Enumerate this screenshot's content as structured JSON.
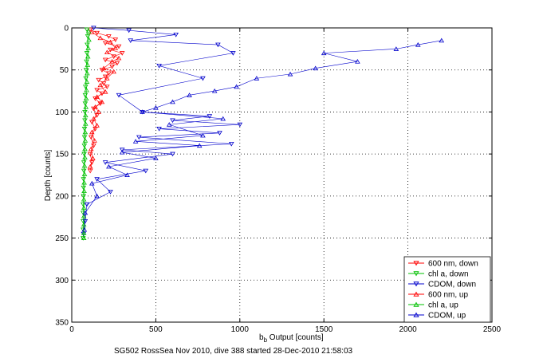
{
  "chart_data": {
    "type": "scatter",
    "title": "",
    "xlabel_main": "b",
    "xlabel_sub": "b",
    "xlabel_rest": " Output [counts]",
    "ylabel": "Depth [counts]",
    "caption": "SG502 RossSea Nov 2010, dive 388 started 28-Dec-2010 21:58:03",
    "xlim": [
      0,
      2500
    ],
    "ylim": [
      0,
      350
    ],
    "y_reversed": true,
    "grid": true,
    "legend_position": "bottom-right",
    "x_ticks": [
      "0",
      "500",
      "1000",
      "1500",
      "2000",
      "2500"
    ],
    "y_ticks": [
      "0",
      "50",
      "100",
      "150",
      "200",
      "250",
      "300",
      "350"
    ],
    "series": [
      {
        "name": "600 nm, down",
        "color": "#ff0000",
        "marker": "triangle-down",
        "points": [
          [
            110,
            2
          ],
          [
            150,
            6
          ],
          [
            220,
            10
          ],
          [
            260,
            14
          ],
          [
            200,
            18
          ],
          [
            280,
            22
          ],
          [
            230,
            26
          ],
          [
            300,
            30
          ],
          [
            250,
            34
          ],
          [
            200,
            38
          ],
          [
            270,
            42
          ],
          [
            240,
            46
          ],
          [
            180,
            50
          ],
          [
            220,
            54
          ],
          [
            200,
            58
          ],
          [
            160,
            62
          ],
          [
            190,
            66
          ],
          [
            210,
            70
          ],
          [
            150,
            74
          ],
          [
            180,
            78
          ],
          [
            140,
            84
          ],
          [
            170,
            90
          ],
          [
            130,
            96
          ],
          [
            150,
            104
          ],
          [
            120,
            112
          ],
          [
            140,
            120
          ],
          [
            115,
            130
          ],
          [
            130,
            140
          ],
          [
            110,
            150
          ],
          [
            120,
            160
          ],
          [
            110,
            170
          ]
        ]
      },
      {
        "name": "chl a, down",
        "color": "#00c000",
        "marker": "triangle-down",
        "points": [
          [
            90,
            2
          ],
          [
            95,
            10
          ],
          [
            92,
            20
          ],
          [
            90,
            30
          ],
          [
            88,
            40
          ],
          [
            86,
            50
          ],
          [
            84,
            60
          ],
          [
            82,
            70
          ],
          [
            80,
            80
          ],
          [
            80,
            90
          ],
          [
            78,
            100
          ],
          [
            78,
            110
          ],
          [
            76,
            120
          ],
          [
            76,
            130
          ],
          [
            75,
            140
          ],
          [
            74,
            150
          ],
          [
            72,
            160
          ],
          [
            72,
            170
          ],
          [
            70,
            180
          ],
          [
            70,
            190
          ],
          [
            70,
            200
          ],
          [
            68,
            210
          ],
          [
            68,
            220
          ],
          [
            68,
            230
          ],
          [
            68,
            240
          ],
          [
            68,
            250
          ]
        ]
      },
      {
        "name": "CDOM, down",
        "color": "#0000cc",
        "marker": "triangle-down",
        "points": [
          [
            130,
            0
          ],
          [
            340,
            3
          ],
          [
            620,
            8
          ],
          [
            350,
            15
          ],
          [
            870,
            20
          ],
          [
            960,
            30
          ],
          [
            520,
            45
          ],
          [
            780,
            60
          ],
          [
            280,
            80
          ],
          [
            420,
            100
          ],
          [
            820,
            105
          ],
          [
            600,
            110
          ],
          [
            1000,
            115
          ],
          [
            520,
            120
          ],
          [
            880,
            125
          ],
          [
            400,
            130
          ],
          [
            950,
            138
          ],
          [
            300,
            145
          ],
          [
            600,
            150
          ],
          [
            200,
            160
          ],
          [
            440,
            170
          ],
          [
            150,
            180
          ],
          [
            230,
            195
          ],
          [
            90,
            210
          ],
          [
            80,
            230
          ],
          [
            70,
            245
          ]
        ]
      },
      {
        "name": "600 nm, up",
        "color": "#ff0000",
        "marker": "triangle-up",
        "points": [
          [
            120,
            5
          ],
          [
            170,
            12
          ],
          [
            230,
            17
          ],
          [
            260,
            24
          ],
          [
            210,
            29
          ],
          [
            280,
            36
          ],
          [
            240,
            40
          ],
          [
            190,
            48
          ],
          [
            250,
            52
          ],
          [
            210,
            60
          ],
          [
            170,
            68
          ],
          [
            200,
            76
          ],
          [
            150,
            82
          ],
          [
            180,
            88
          ],
          [
            140,
            94
          ],
          [
            160,
            100
          ],
          [
            130,
            108
          ],
          [
            150,
            116
          ],
          [
            120,
            124
          ],
          [
            135,
            134
          ],
          [
            115,
            144
          ],
          [
            125,
            155
          ],
          [
            110,
            165
          ]
        ]
      },
      {
        "name": "chl a, up",
        "color": "#00c000",
        "marker": "triangle-up",
        "points": [
          [
            100,
            4
          ],
          [
            102,
            14
          ],
          [
            98,
            24
          ],
          [
            96,
            34
          ],
          [
            94,
            44
          ],
          [
            92,
            54
          ],
          [
            90,
            64
          ],
          [
            88,
            74
          ],
          [
            86,
            84
          ],
          [
            84,
            94
          ],
          [
            82,
            104
          ],
          [
            82,
            114
          ],
          [
            80,
            124
          ],
          [
            80,
            134
          ],
          [
            78,
            144
          ],
          [
            78,
            154
          ],
          [
            76,
            164
          ],
          [
            76,
            174
          ],
          [
            74,
            184
          ],
          [
            74,
            194
          ],
          [
            72,
            204
          ],
          [
            72,
            214
          ],
          [
            72,
            224
          ],
          [
            72,
            234
          ],
          [
            72,
            244
          ],
          [
            72,
            250
          ]
        ]
      },
      {
        "name": "CDOM, up",
        "color": "#0000cc",
        "marker": "triangle-up",
        "points": [
          [
            2200,
            15
          ],
          [
            2060,
            20
          ],
          [
            1930,
            25
          ],
          [
            1500,
            30
          ],
          [
            1700,
            40
          ],
          [
            1450,
            48
          ],
          [
            1300,
            55
          ],
          [
            1100,
            60
          ],
          [
            980,
            70
          ],
          [
            850,
            75
          ],
          [
            700,
            80
          ],
          [
            600,
            88
          ],
          [
            500,
            95
          ],
          [
            420,
            100
          ],
          [
            900,
            108
          ],
          [
            580,
            115
          ],
          [
            780,
            128
          ],
          [
            380,
            135
          ],
          [
            760,
            140
          ],
          [
            300,
            148
          ],
          [
            500,
            155
          ],
          [
            220,
            165
          ],
          [
            330,
            175
          ],
          [
            120,
            185
          ],
          [
            150,
            200
          ],
          [
            80,
            220
          ],
          [
            75,
            240
          ]
        ]
      }
    ]
  }
}
